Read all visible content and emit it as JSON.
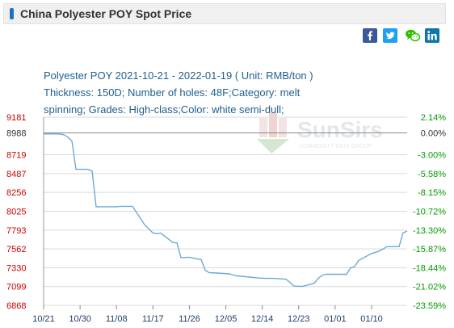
{
  "page_title": "China Polyester POY Spot Price",
  "share_icons": [
    "facebook-icon",
    "twitter-icon",
    "wechat-icon",
    "linkedin-icon"
  ],
  "description": {
    "line1": "Polyester POY 2021-10-21 - 2022-01-19    ( Unit: RMB/ton )",
    "line2": "Thickness: 150D; Number of holes: 48F;Category: melt",
    "line3": "spinning; Grades: High-class;Color: white semi-dull;"
  },
  "watermark": {
    "brand": "SunSirs",
    "tagline": "COMMODITY DATA GROUP"
  },
  "colors": {
    "line": "#6fa9d4",
    "left_axis": "#cc0000",
    "right_axis": "#009900",
    "grid": "#d9d9d9",
    "baseline": "#888888"
  },
  "chart_data": {
    "type": "line",
    "title": "Polyester POY 2021-10-21 - 2022-01-19",
    "unit": "RMB/ton",
    "x_tick_labels": [
      "10/21",
      "10/30",
      "11/08",
      "11/17",
      "11/26",
      "12/05",
      "12/14",
      "12/23",
      "01/01",
      "01/10"
    ],
    "y_left_ticks": [
      9181,
      8988,
      8719,
      8487,
      8256,
      8025,
      7793,
      7562,
      7330,
      7099,
      6868
    ],
    "y_right_ticks": [
      "2.14%",
      "0.00%",
      "-3.00%",
      "-5.58%",
      "-8.15%",
      "-10.72%",
      "-13.30%",
      "-15.87%",
      "-18.44%",
      "-21.02%",
      "-23.59%"
    ],
    "ylim": [
      6868,
      9181
    ],
    "grid": "horizontal",
    "series": [
      {
        "values": [
          {
            "x": "2021-10-21",
            "y": 8975
          },
          {
            "x": "2021-10-22",
            "y": 8975
          },
          {
            "x": "2021-10-23",
            "y": 8975
          },
          {
            "x": "2021-10-24",
            "y": 8975
          },
          {
            "x": "2021-10-25",
            "y": 8975
          },
          {
            "x": "2021-10-26",
            "y": 8965
          },
          {
            "x": "2021-10-27",
            "y": 8935
          },
          {
            "x": "2021-10-28",
            "y": 8890
          },
          {
            "x": "2021-10-29",
            "y": 8540
          },
          {
            "x": "2021-11-01",
            "y": 8540
          },
          {
            "x": "2021-11-02",
            "y": 8520
          },
          {
            "x": "2021-11-03",
            "y": 8080
          },
          {
            "x": "2021-11-04",
            "y": 8080
          },
          {
            "x": "2021-11-08",
            "y": 8080
          },
          {
            "x": "2021-11-09",
            "y": 8085
          },
          {
            "x": "2021-11-12",
            "y": 8085
          },
          {
            "x": "2021-11-15",
            "y": 7860
          },
          {
            "x": "2021-11-16",
            "y": 7810
          },
          {
            "x": "2021-11-17",
            "y": 7760
          },
          {
            "x": "2021-11-18",
            "y": 7750
          },
          {
            "x": "2021-11-19",
            "y": 7755
          },
          {
            "x": "2021-11-22",
            "y": 7640
          },
          {
            "x": "2021-11-23",
            "y": 7635
          },
          {
            "x": "2021-11-24",
            "y": 7455
          },
          {
            "x": "2021-11-26",
            "y": 7460
          },
          {
            "x": "2021-11-29",
            "y": 7430
          },
          {
            "x": "2021-11-30",
            "y": 7300
          },
          {
            "x": "2021-12-01",
            "y": 7270
          },
          {
            "x": "2021-12-03",
            "y": 7265
          },
          {
            "x": "2021-12-06",
            "y": 7255
          },
          {
            "x": "2021-12-07",
            "y": 7240
          },
          {
            "x": "2021-12-08",
            "y": 7230
          },
          {
            "x": "2021-12-10",
            "y": 7220
          },
          {
            "x": "2021-12-13",
            "y": 7205
          },
          {
            "x": "2021-12-15",
            "y": 7200
          },
          {
            "x": "2021-12-17",
            "y": 7200
          },
          {
            "x": "2021-12-20",
            "y": 7190
          },
          {
            "x": "2021-12-21",
            "y": 7150
          },
          {
            "x": "2021-12-22",
            "y": 7105
          },
          {
            "x": "2021-12-24",
            "y": 7100
          },
          {
            "x": "2021-12-27",
            "y": 7140
          },
          {
            "x": "2021-12-28",
            "y": 7200
          },
          {
            "x": "2021-12-29",
            "y": 7240
          },
          {
            "x": "2021-12-30",
            "y": 7250
          },
          {
            "x": "2022-01-04",
            "y": 7250
          },
          {
            "x": "2022-01-05",
            "y": 7330
          },
          {
            "x": "2022-01-06",
            "y": 7345
          },
          {
            "x": "2022-01-07",
            "y": 7420
          },
          {
            "x": "2022-01-10",
            "y": 7500
          },
          {
            "x": "2022-01-12",
            "y": 7535
          },
          {
            "x": "2022-01-13",
            "y": 7560
          },
          {
            "x": "2022-01-14",
            "y": 7590
          },
          {
            "x": "2022-01-17",
            "y": 7590
          },
          {
            "x": "2022-01-18",
            "y": 7760
          },
          {
            "x": "2022-01-19",
            "y": 7780
          }
        ]
      }
    ]
  }
}
